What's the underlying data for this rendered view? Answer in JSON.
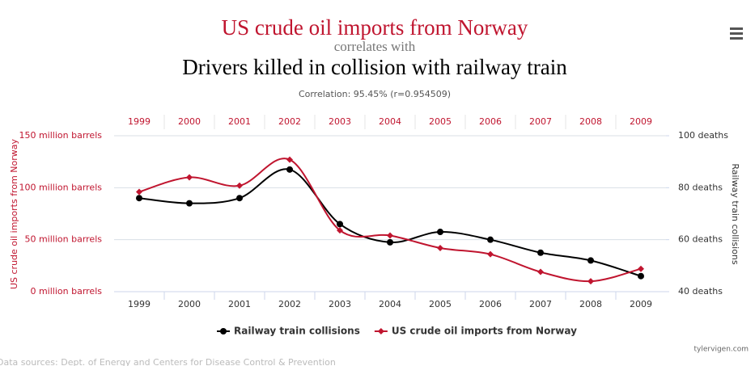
{
  "chart_data": {
    "type": "line",
    "title": "US crude oil imports from Norway",
    "subtitle": "correlates with",
    "second_title": "Drivers killed in collision with railway train",
    "annotation": "Correlation: 95.45% (r=0.954509)",
    "ylabel": "US crude oil imports from Norway",
    "y2label": "Railway train collisions",
    "categories": [
      "1999",
      "2000",
      "2001",
      "2002",
      "2003",
      "2004",
      "2005",
      "2006",
      "2007",
      "2008",
      "2009"
    ],
    "series": [
      {
        "name": "Railway train collisions",
        "color": "#000000",
        "axis": "y2",
        "marker": "circle",
        "values": [
          76,
          74,
          76,
          87,
          66,
          59,
          63,
          60,
          55,
          52,
          46
        ]
      },
      {
        "name": "US crude oil imports from Norway",
        "color": "#c0152f",
        "axis": "y",
        "marker": "diamond",
        "values": [
          96,
          110,
          102,
          127,
          59,
          54,
          42,
          36,
          19,
          10,
          22
        ]
      }
    ],
    "ylim": [
      0,
      150
    ],
    "yticks": [
      {
        "value": 0,
        "label": "0 million barrels"
      },
      {
        "value": 50,
        "label": "50 million barrels"
      },
      {
        "value": 100,
        "label": "100 million barrels"
      },
      {
        "value": 150,
        "label": "150 million barrels"
      }
    ],
    "y2lim": [
      40,
      100
    ],
    "y2ticks": [
      {
        "value": 40,
        "label": "40 deaths"
      },
      {
        "value": 60,
        "label": "60 deaths"
      },
      {
        "value": 80,
        "label": "80 deaths"
      },
      {
        "value": 100,
        "label": "100 deaths"
      }
    ],
    "grid": true,
    "legend": "bottom",
    "source": "Data sources: Dept. of Energy and Centers for Disease Control & Prevention",
    "credit": "tylervigen.com"
  }
}
